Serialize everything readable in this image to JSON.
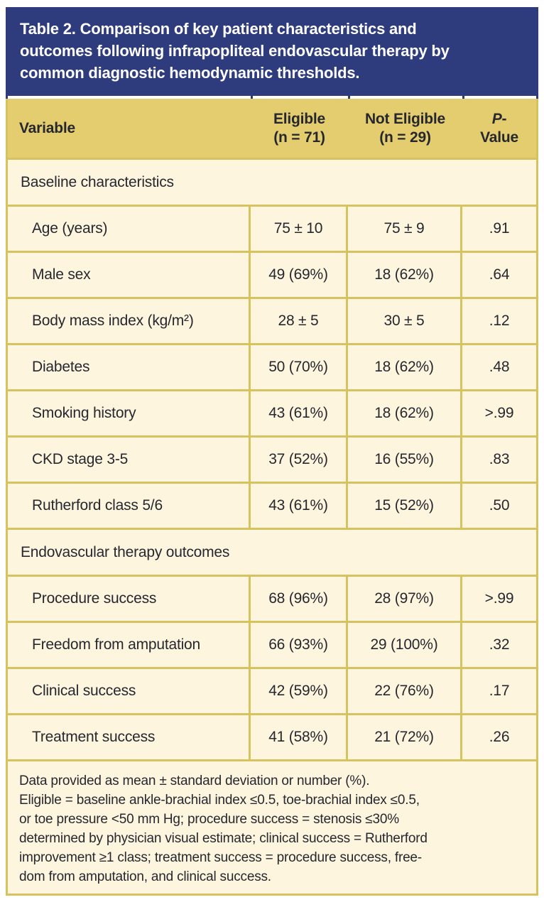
{
  "title": "Table 2. Comparison of key patient characteristics and outcomes following infrapopliteal endovascular therapy by common diagnostic hemodynamic thresholds.",
  "title_lines": [
    "Table 2. Comparison of key patient characteristics and",
    "outcomes following infrapopliteal endovascular therapy by",
    "common diagnostic hemodynamic thresholds."
  ],
  "column_header": {
    "variable": "Variable",
    "eligible_line1": "Eligible",
    "eligible_line2": "(n = 71)",
    "not_eligible_line1": "Not Eligible",
    "not_eligible_line2": "(n = 29)",
    "p_italic": "P",
    "p_dash": "-",
    "p_line2": "Value"
  },
  "sections": [
    {
      "header": "Baseline characteristics",
      "rows": [
        {
          "label": "Age (years)",
          "eligible": "75 ± 10",
          "not_eligible": "75 ± 9",
          "p": ".91"
        },
        {
          "label": "Male sex",
          "eligible": "49 (69%)",
          "not_eligible": "18 (62%)",
          "p": ".64"
        },
        {
          "label": "Body mass index (kg/m²)",
          "eligible": "28 ± 5",
          "not_eligible": "30 ± 5",
          "p": ".12"
        },
        {
          "label": "Diabetes",
          "eligible": "50 (70%)",
          "not_eligible": "18 (62%)",
          "p": ".48"
        },
        {
          "label": "Smoking history",
          "eligible": "43 (61%)",
          "not_eligible": "18 (62%)",
          "p": ">.99"
        },
        {
          "label": "CKD stage 3-5",
          "eligible": "37 (52%)",
          "not_eligible": "16 (55%)",
          "p": ".83"
        },
        {
          "label": "Rutherford class 5/6",
          "eligible": "43 (61%)",
          "not_eligible": "15 (52%)",
          "p": ".50"
        }
      ]
    },
    {
      "header": "Endovascular therapy outcomes",
      "rows": [
        {
          "label": "Procedure success",
          "eligible": "68 (96%)",
          "not_eligible": "28 (97%)",
          "p": ">.99"
        },
        {
          "label": "Freedom from amputation",
          "eligible": "66 (93%)",
          "not_eligible": "29 (100%)",
          "p": ".32"
        },
        {
          "label": "Clinical success",
          "eligible": "42 (59%)",
          "not_eligible": "22 (76%)",
          "p": ".17"
        },
        {
          "label": "Treatment success",
          "eligible": "41 (58%)",
          "not_eligible": "21 (72%)",
          "p": ".26"
        }
      ]
    }
  ],
  "footnote_lines": [
    "Data provided as mean ± standard deviation or number (%).",
    "Eligible = baseline ankle-brachial index ≤0.5, toe-brachial index ≤0.5,",
    "or toe pressure <50 mm Hg; procedure success = stenosis ≤30%",
    "determined by physician visual estimate; clinical success = Rutherford",
    "improvement ≥1 class; treatment success = procedure success, free-",
    "dom from amputation, and clinical success."
  ],
  "colors": {
    "band_blue": "#2e3c7e",
    "header_gold": "#e3cd6e",
    "body_cream": "#fdf5de",
    "border_gold": "#d6c25f",
    "text_dark": "#26272f",
    "title_white": "#ffffff"
  }
}
